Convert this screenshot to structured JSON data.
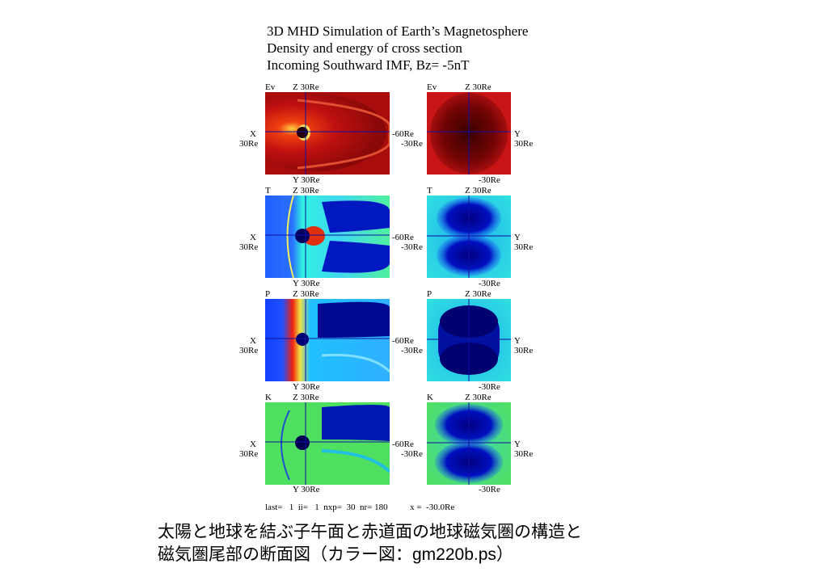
{
  "title_lines": [
    "3D MHD Simulation of Earth’s Magnetosphere",
    "Density and energy of cross section",
    "Incoming Southward IMF, Bz= -5nT"
  ],
  "rows": [
    {
      "name": "Ev",
      "left_label": "Ev",
      "right_label": "Ev"
    },
    {
      "name": "T",
      "left_label": "T",
      "right_label": "T"
    },
    {
      "name": "P",
      "left_label": "P",
      "right_label": "P"
    },
    {
      "name": "K",
      "left_label": "K",
      "right_label": "K"
    }
  ],
  "axis_labels": {
    "z_top": "Z  30Re",
    "x_axis": "X",
    "x_scale": "30Re",
    "y_bottom": "Y  30Re",
    "x_right": "-60Re",
    "x_right2": "-30Re",
    "y_axis": "Y",
    "y_scale": "30Re",
    "right_bottom": "-30Re"
  },
  "footer": "last=   1  ii=   1  nxp=  30  nr= 180          x =  -30.0Re",
  "caption_lines": [
    "太陽と地球を結ぶ子午面と赤道面の地球磁気圏の構造と",
    "磁気圏尾部の断面図（カラー図：gm220b.ps）"
  ],
  "colors": {
    "ev_bg": "#c81414",
    "blue_deep": "#00007a",
    "cyan": "#00c8e8",
    "green": "#50e060",
    "axis_line": "#1010a0"
  }
}
